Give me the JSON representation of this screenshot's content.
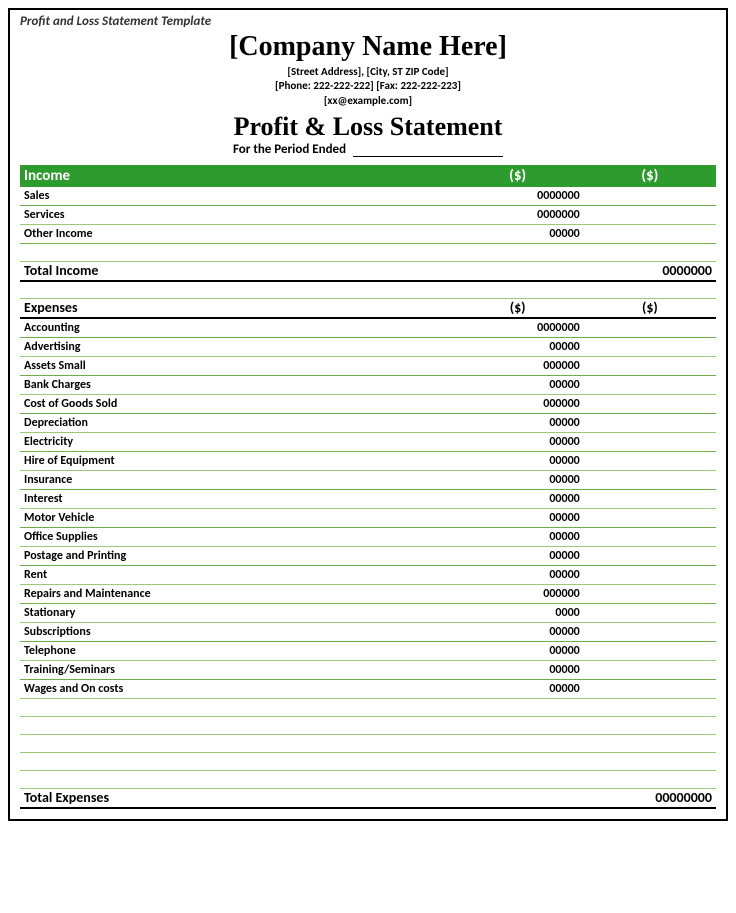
{
  "doc_title": "Profit and Loss Statement Template",
  "header": {
    "company_name": "[Company Name Here]",
    "address": "[Street Address], [City, ST ZIP Code]",
    "phone_fax": "[Phone: 222-222-222] [Fax: 222-222-223]",
    "email": "[xx@example.com]",
    "statement_title": "Profit & Loss Statement",
    "period_label": "For the Period Ended"
  },
  "income": {
    "title": "Income",
    "col2": "($)",
    "col3": "($)",
    "rows": [
      {
        "label": "Sales",
        "v2": "0000000",
        "v3": ""
      },
      {
        "label": "Services",
        "v2": "0000000",
        "v3": ""
      },
      {
        "label": "Other Income",
        "v2": "00000",
        "v3": ""
      }
    ],
    "total_label": "Total Income",
    "total_value": "0000000"
  },
  "expenses": {
    "title": "Expenses",
    "col2": "($)",
    "col3": "($)",
    "rows": [
      {
        "label": "Accounting",
        "v2": "0000000",
        "v3": ""
      },
      {
        "label": "Advertising",
        "v2": "00000",
        "v3": ""
      },
      {
        "label": "Assets Small",
        "v2": "000000",
        "v3": ""
      },
      {
        "label": "Bank Charges",
        "v2": "00000",
        "v3": ""
      },
      {
        "label": "Cost of Goods Sold",
        "v2": "000000",
        "v3": ""
      },
      {
        "label": "Depreciation",
        "v2": "00000",
        "v3": ""
      },
      {
        "label": "Electricity",
        "v2": "00000",
        "v3": ""
      },
      {
        "label": "Hire of Equipment",
        "v2": "00000",
        "v3": ""
      },
      {
        "label": "Insurance",
        "v2": "00000",
        "v3": ""
      },
      {
        "label": "Interest",
        "v2": "00000",
        "v3": ""
      },
      {
        "label": "Motor Vehicle",
        "v2": "00000",
        "v3": ""
      },
      {
        "label": "Office Supplies",
        "v2": "00000",
        "v3": ""
      },
      {
        "label": "Postage and Printing",
        "v2": "00000",
        "v3": ""
      },
      {
        "label": "Rent",
        "v2": "00000",
        "v3": ""
      },
      {
        "label": "Repairs and Maintenance",
        "v2": "000000",
        "v3": ""
      },
      {
        "label": "Stationary",
        "v2": "0000",
        "v3": ""
      },
      {
        "label": "Subscriptions",
        "v2": "00000",
        "v3": ""
      },
      {
        "label": "Telephone",
        "v2": "00000",
        "v3": ""
      },
      {
        "label": "Training/Seminars",
        "v2": "00000",
        "v3": ""
      },
      {
        "label": "Wages and On costs",
        "v2": "00000",
        "v3": ""
      }
    ],
    "blank_rows": 5,
    "total_label": "Total Expenses",
    "total_value": "00000000"
  },
  "colors": {
    "header_bg": "#2e9b2e",
    "line_a": "#6fae46",
    "line_b": "#9bc97a"
  }
}
